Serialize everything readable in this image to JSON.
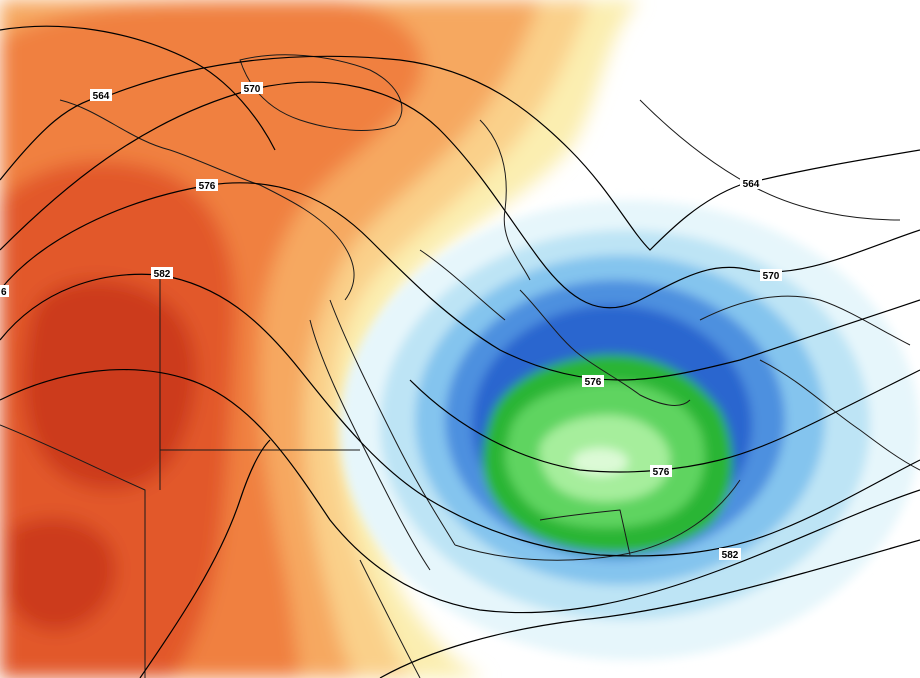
{
  "map": {
    "contour_labels": [
      {
        "id": "564-northwest",
        "text": "564"
      },
      {
        "id": "570-north",
        "text": "570"
      },
      {
        "id": "576-west",
        "text": "576"
      },
      {
        "id": "582-west",
        "text": "582"
      },
      {
        "id": "564-northeast",
        "text": "564"
      },
      {
        "id": "570-east",
        "text": "570"
      },
      {
        "id": "576-low-center",
        "text": "576"
      },
      {
        "id": "576-low-south",
        "text": "576"
      },
      {
        "id": "582-southeast",
        "text": "582"
      },
      {
        "id": "edge-west",
        "text": "6"
      }
    ],
    "colors": {
      "ridge_dark": "#cc3a1c",
      "ridge_mid": "#e2582c",
      "ridge_orange": "#f08040",
      "ridge_light": "#f6a860",
      "ridge_pale": "#fad08a",
      "ridge_yellow": "#fbeeb0",
      "trough_pale": "#e6f6fb",
      "trough_light": "#bde4f5",
      "trough_sky": "#84c4ee",
      "trough_blue": "#4d90df",
      "trough_deep": "#2a66cf",
      "core_green": "#2bb534",
      "core_light": "#5fd460",
      "core_pale": "#a6ee9c",
      "core_center": "#dcfad6",
      "contour_line": "#000000",
      "border_line": "#1a1a1a"
    }
  }
}
